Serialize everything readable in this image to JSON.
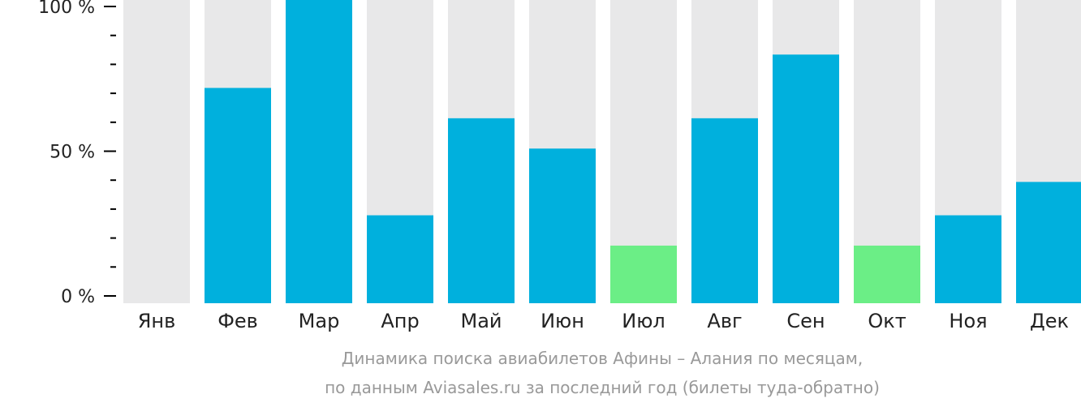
{
  "chart_data": {
    "type": "bar",
    "categories": [
      "Янв",
      "Фев",
      "Мар",
      "Апр",
      "Май",
      "Июн",
      "Июл",
      "Авг",
      "Сен",
      "Окт",
      "Ноя",
      "Дек"
    ],
    "values": [
      0,
      71,
      100,
      29,
      61,
      51,
      19,
      61,
      82,
      19,
      29,
      40
    ],
    "ylim": [
      0,
      100
    ],
    "yticks": [
      {
        "value": 0,
        "label": "0 %"
      },
      {
        "value": 50,
        "label": "50 %"
      },
      {
        "value": 100,
        "label": "100 %"
      }
    ],
    "highlight_categories": [
      "Июл",
      "Окт"
    ],
    "colors": {
      "bar": "#00b0dd",
      "highlight": "#6bee86",
      "background_bar": "#e8e8e9",
      "axis": "#000000"
    }
  },
  "caption": {
    "line1": "Динамика поиска авиабилетов Афины – Алания по месяцам,",
    "line2": "по данным Aviasales.ru за последний год (билеты туда-обратно)"
  }
}
